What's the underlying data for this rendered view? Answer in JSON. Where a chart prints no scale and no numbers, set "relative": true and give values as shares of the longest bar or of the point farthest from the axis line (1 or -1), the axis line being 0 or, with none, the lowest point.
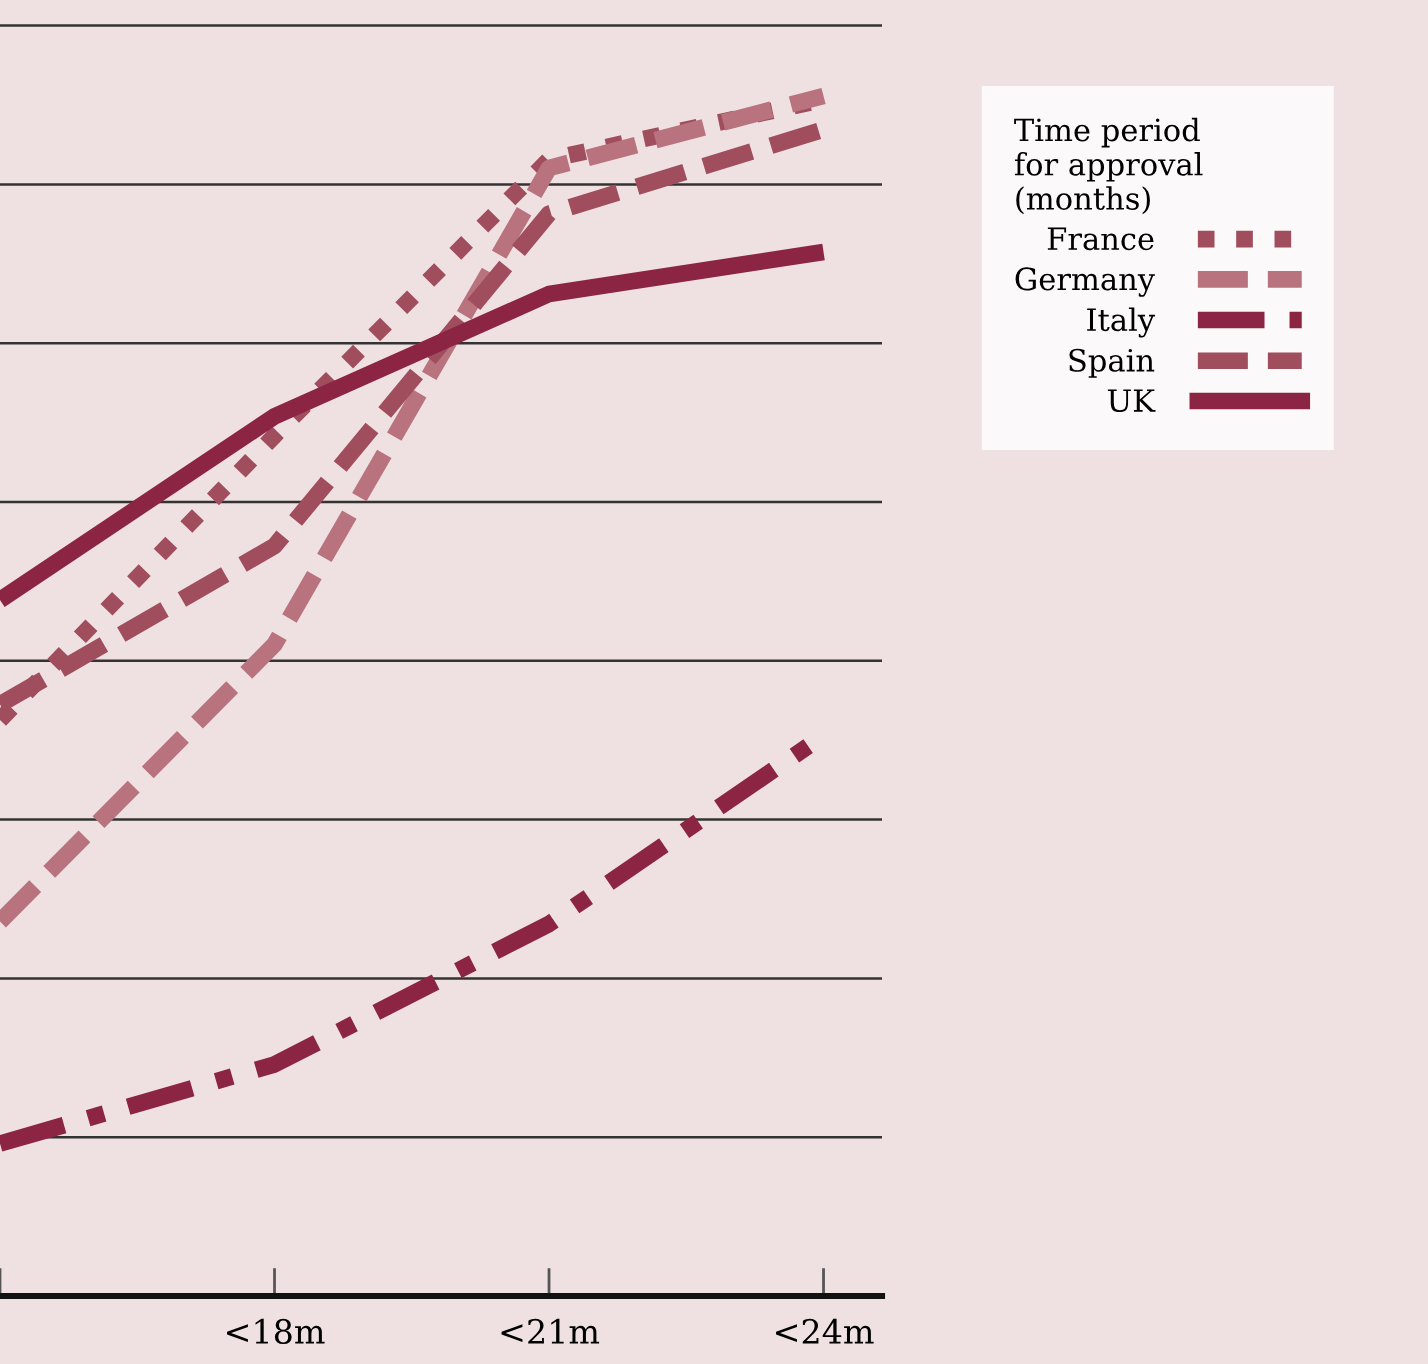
{
  "chart_data": {
    "type": "line",
    "relative": true,
    "categories": [
      null,
      "<18m",
      "<21m",
      "<24m"
    ],
    "legend_title": "Time period\nfor approval\n(months)",
    "legend": "top right",
    "grid": "y",
    "marker": "none",
    "series": [
      {
        "name": "France",
        "color": "#a04d5e",
        "line_style": "dotted",
        "values": [
          0.48,
          0.717,
          0.947,
          0.997
        ]
      },
      {
        "name": "Germany",
        "color": "#b8737f",
        "line_style": "dashed",
        "values": [
          0.312,
          0.543,
          0.94,
          1
        ]
      },
      {
        "name": "Italy",
        "color": "#8b2543",
        "line_style": "dashdot",
        "values": [
          0.127,
          0.193,
          0.31,
          0.467
        ]
      },
      {
        "name": "Spain",
        "color": "#a04d5e",
        "line_style": "dashed",
        "values": [
          0.493,
          0.625,
          0.902,
          0.972
        ]
      },
      {
        "name": "UK",
        "color": "#8b2543",
        "line_style": "solid",
        "values": [
          0.58,
          0.733,
          0.835,
          0.87
        ]
      }
    ]
  }
}
